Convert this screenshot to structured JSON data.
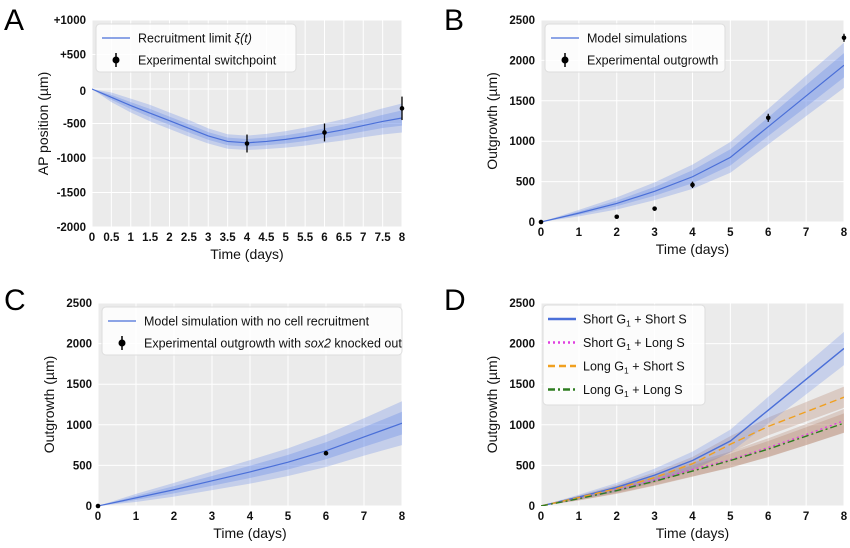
{
  "colors": {
    "plot_bg": "#ebebeb",
    "grid": "#ffffff",
    "sim_line": "#4a6fd8",
    "band": "#6a8be8",
    "brown_band": "#b07a60",
    "magenta": "#e040e0",
    "orange": "#f0a020",
    "green": "#2e7d20",
    "point": "#000000"
  },
  "chart_data": [
    {
      "type": "line",
      "panel": "A",
      "xlabel": "Time (days)",
      "ylabel": "AP position (µm)",
      "xlim": [
        0,
        8
      ],
      "ylim": [
        -2000,
        1000
      ],
      "xticks": [
        0,
        0.5,
        1,
        1.5,
        2,
        2.5,
        3,
        3.5,
        4,
        4.5,
        5,
        5.5,
        6,
        6.5,
        7,
        7.5,
        8
      ],
      "xticklabels": [
        "0",
        "0.5",
        "1",
        "1.5",
        "2",
        "2.5",
        "3",
        "3.5",
        "4",
        "4.5",
        "5",
        "5.5",
        "6",
        "6.5",
        "7",
        "7.5",
        "8"
      ],
      "yticks": [
        1000,
        500,
        0,
        -500,
        -1000,
        -1500,
        -2000
      ],
      "yticklabels": [
        "+1000",
        "+500",
        "0",
        "-500",
        "-1000",
        "-1500",
        "-2000"
      ],
      "grid": true,
      "legend_position": "top-left",
      "legend": [
        {
          "label": "Recruitment limit",
          "math": "ξ(t)",
          "kind": "line"
        },
        {
          "label": "Experimental switchpoint",
          "kind": "errorbar"
        }
      ],
      "simulation": {
        "x": [
          0,
          0.5,
          1,
          1.5,
          2,
          2.5,
          3,
          3.5,
          4,
          4.5,
          5,
          5.5,
          6,
          6.5,
          7,
          7.5,
          8
        ],
        "y": [
          0,
          -120,
          -240,
          -350,
          -460,
          -570,
          -680,
          -760,
          -780,
          -760,
          -730,
          -690,
          -640,
          -590,
          -530,
          -470,
          -420
        ],
        "band_inner": [
          0,
          35,
          50,
          60,
          60,
          60,
          55,
          55,
          55,
          55,
          60,
          65,
          70,
          75,
          85,
          95,
          110
        ],
        "band_outer": [
          0,
          70,
          100,
          120,
          120,
          120,
          110,
          105,
          105,
          110,
          120,
          130,
          140,
          155,
          170,
          190,
          210
        ]
      },
      "points": [
        {
          "x": 4,
          "y": -790,
          "err": 130
        },
        {
          "x": 6,
          "y": -630,
          "err": 130
        },
        {
          "x": 8,
          "y": -280,
          "err": 170
        }
      ]
    },
    {
      "type": "line",
      "panel": "B",
      "xlabel": "Time (days)",
      "ylabel": "Outgrowth (µm)",
      "xlim": [
        0,
        8
      ],
      "ylim": [
        0,
        2500
      ],
      "xticks": [
        0,
        1,
        2,
        3,
        4,
        5,
        6,
        7,
        8
      ],
      "yticks": [
        0,
        500,
        1000,
        1500,
        2000,
        2500
      ],
      "grid": true,
      "legend_position": "top-left",
      "legend": [
        {
          "label": "Model simulations",
          "kind": "line"
        },
        {
          "label": "Experimental outgrowth",
          "kind": "errorbar"
        }
      ],
      "simulation": {
        "x": [
          0,
          1,
          2,
          3,
          4,
          5,
          6,
          7,
          8
        ],
        "y": [
          0,
          110,
          230,
          380,
          560,
          800,
          1180,
          1560,
          1940
        ],
        "band_inner": [
          0,
          20,
          35,
          55,
          80,
          100,
          115,
          135,
          150
        ],
        "band_outer": [
          0,
          40,
          75,
          110,
          150,
          190,
          220,
          250,
          280
        ]
      },
      "points": [
        {
          "x": 0,
          "y": 0,
          "err": 10
        },
        {
          "x": 2,
          "y": 65,
          "err": 10
        },
        {
          "x": 3,
          "y": 165,
          "err": 10
        },
        {
          "x": 4,
          "y": 460,
          "err": 40
        },
        {
          "x": 6,
          "y": 1290,
          "err": 50
        },
        {
          "x": 8,
          "y": 2280,
          "err": 50
        }
      ]
    },
    {
      "type": "line",
      "panel": "C",
      "xlabel": "Time (days)",
      "ylabel": "Outgrowth (µm)",
      "xlim": [
        0,
        8
      ],
      "ylim": [
        0,
        2500
      ],
      "xticks": [
        0,
        1,
        2,
        3,
        4,
        5,
        6,
        7,
        8
      ],
      "yticks": [
        0,
        500,
        1000,
        1500,
        2000,
        2500
      ],
      "grid": true,
      "legend_position": "top-left",
      "legend": [
        {
          "label": "Model simulation with no cell recruitment",
          "kind": "line"
        },
        {
          "label": "Experimental outgrowth with ",
          "italic": "sox2",
          "label_end": " knocked out",
          "kind": "errorbar"
        }
      ],
      "simulation": {
        "x": [
          0,
          1,
          2,
          3,
          4,
          5,
          6,
          7,
          8
        ],
        "y": [
          0,
          100,
          200,
          310,
          420,
          540,
          680,
          850,
          1020
        ],
        "band_inner": [
          0,
          25,
          45,
          60,
          75,
          90,
          105,
          120,
          140
        ],
        "band_outer": [
          0,
          50,
          85,
          115,
          145,
          170,
          200,
          230,
          270
        ]
      },
      "points": [
        {
          "x": 0,
          "y": 0,
          "err": 8
        },
        {
          "x": 6,
          "y": 650,
          "err": 12
        }
      ]
    },
    {
      "type": "line",
      "panel": "D",
      "xlabel": "Time (days)",
      "ylabel": "Outgrowth (µm)",
      "xlim": [
        0,
        8
      ],
      "ylim": [
        0,
        2500
      ],
      "xticks": [
        0,
        1,
        2,
        3,
        4,
        5,
        6,
        7,
        8
      ],
      "yticks": [
        0,
        500,
        1000,
        1500,
        2000,
        2500
      ],
      "grid": true,
      "legend_position": "top-left",
      "x": [
        0,
        1,
        2,
        3,
        4,
        5,
        6,
        7,
        8
      ],
      "series": [
        {
          "name": "Short G₁ + Short S",
          "label_a": "Short G",
          "sub": "1",
          "label_b": " + Short S",
          "style": "solid",
          "color_key": "sim_line",
          "band_color_key": "band",
          "values": [
            0,
            110,
            230,
            380,
            560,
            800,
            1180,
            1560,
            1940
          ],
          "band": [
            0,
            30,
            55,
            80,
            110,
            140,
            165,
            185,
            205
          ]
        },
        {
          "name": "Short G₁ + Long S",
          "label_a": "Short G",
          "sub": "1",
          "label_b": " + Long S",
          "style": "dotted",
          "color_key": "magenta",
          "band_color_key": "brown_band",
          "values": [
            0,
            95,
            200,
            320,
            450,
            570,
            720,
            880,
            1050
          ],
          "band": [
            0,
            25,
            45,
            65,
            85,
            100,
            115,
            130,
            145
          ]
        },
        {
          "name": "Long G₁ + Short S",
          "label_a": "Long G",
          "sub": "1",
          "label_b": " + Short S",
          "style": "dashed",
          "color_key": "orange",
          "band_color_key": "brown_band",
          "values": [
            0,
            105,
            215,
            350,
            520,
            760,
            980,
            1160,
            1340
          ],
          "band": [
            0,
            25,
            45,
            65,
            85,
            100,
            110,
            120,
            130
          ]
        },
        {
          "name": "Long G₁ + Long S",
          "label_a": "Long G",
          "sub": "1",
          "label_b": " + Long S",
          "style": "dashdot",
          "color_key": "green",
          "band_color_key": "brown_band",
          "values": [
            0,
            90,
            190,
            305,
            430,
            560,
            700,
            860,
            1020
          ],
          "band": [
            0,
            20,
            40,
            55,
            70,
            85,
            100,
            110,
            120
          ]
        }
      ]
    }
  ]
}
